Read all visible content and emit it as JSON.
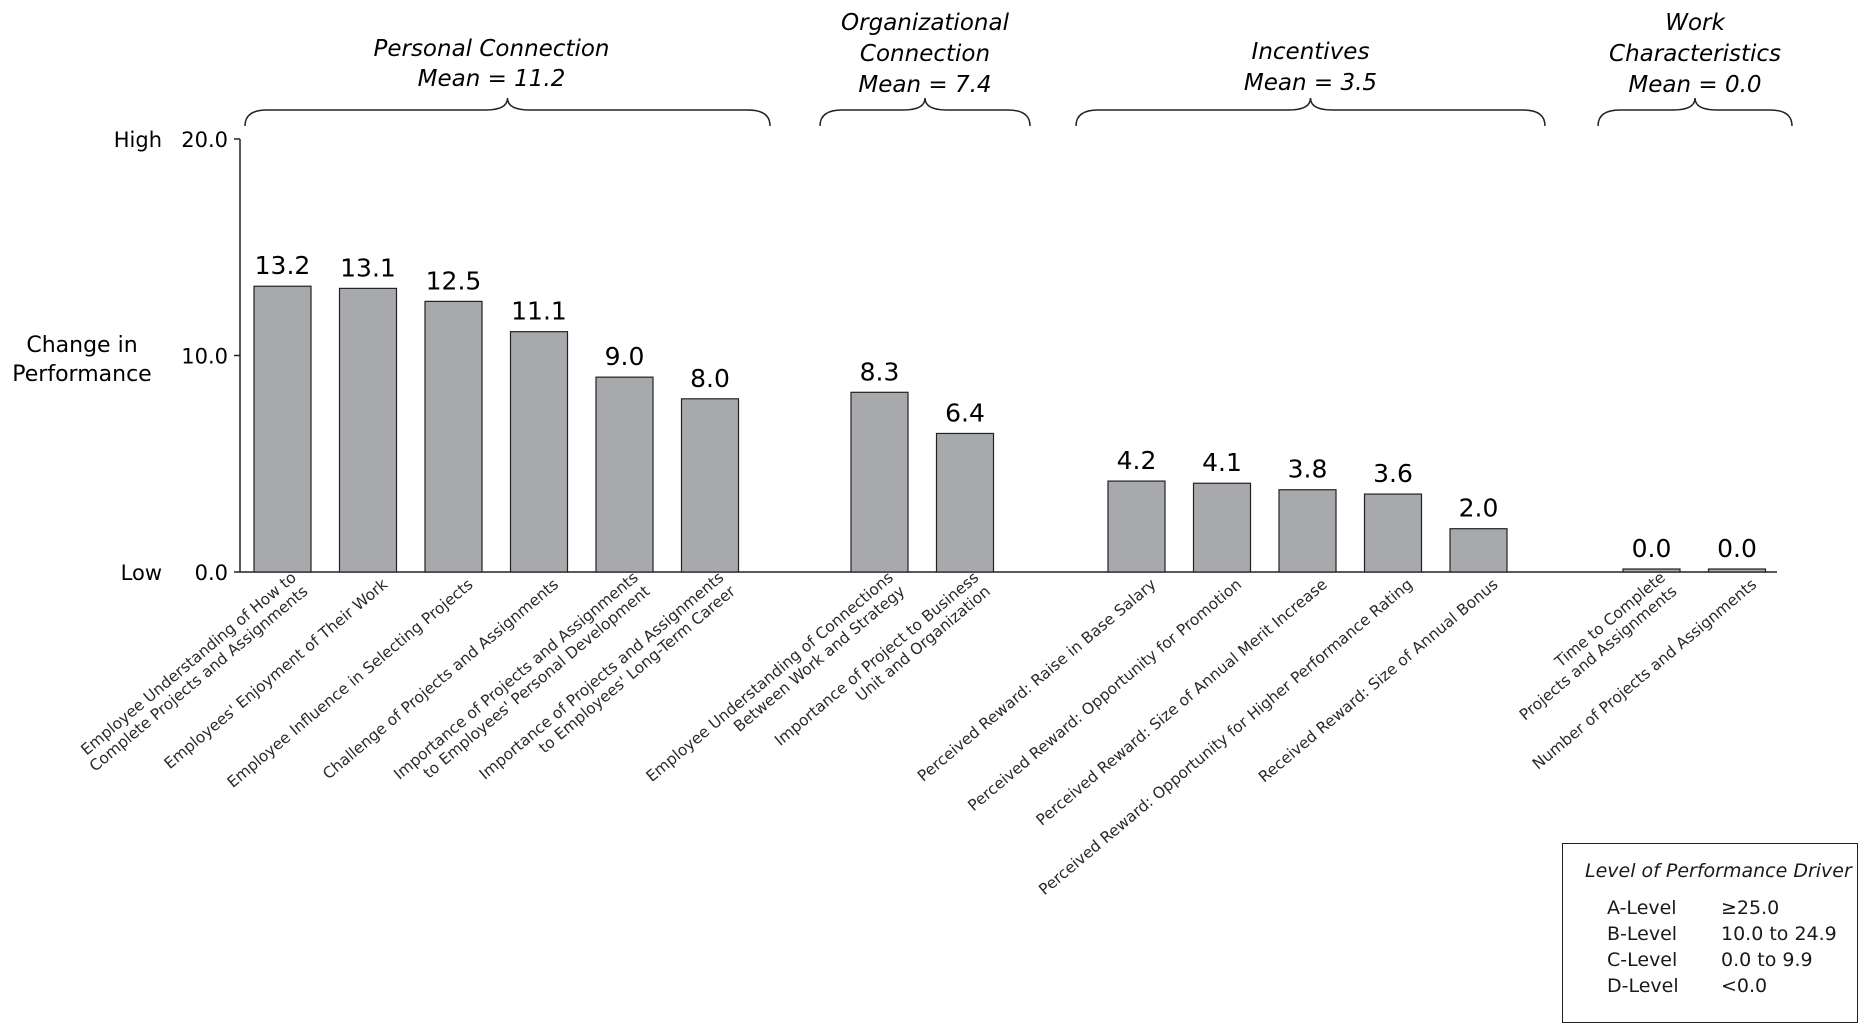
{
  "chart_data": {
    "type": "bar",
    "ylabel": "Change in\nPerformance",
    "ylim": [
      0,
      20
    ],
    "y_ticks": [
      "0.0",
      "10.0",
      "20.0"
    ],
    "y_side_labels": {
      "high": "High",
      "low": "Low"
    },
    "groups": [
      {
        "title_lines": [
          "Personal Connection",
          "Mean = 11.2"
        ],
        "bars": [
          {
            "label": "Employee Understanding of How to\nComplete Projects and Assignments",
            "value": 13.2,
            "value_label": "13.2"
          },
          {
            "label": "Employees' Enjoyment of Their Work",
            "value": 13.1,
            "value_label": "13.1"
          },
          {
            "label": "Employee Influence in Selecting Projects",
            "value": 12.5,
            "value_label": "12.5"
          },
          {
            "label": "Challenge of Projects and Assignments",
            "value": 11.1,
            "value_label": "11.1"
          },
          {
            "label": "Importance of Projects and Assignments\nto Employees' Personal Development",
            "value": 9.0,
            "value_label": "9.0"
          },
          {
            "label": "Importance of Projects and Assignments\nto Employees' Long-Term Career",
            "value": 8.0,
            "value_label": "8.0"
          }
        ]
      },
      {
        "title_lines": [
          "Organizational",
          "Connection",
          "Mean = 7.4"
        ],
        "bars": [
          {
            "label": "Employee Understanding of Connections\nBetween Work and Strategy",
            "value": 8.3,
            "value_label": "8.3"
          },
          {
            "label": "Importance of Project to Business\nUnit and Organization",
            "value": 6.4,
            "value_label": "6.4"
          }
        ]
      },
      {
        "title_lines": [
          "Incentives",
          "Mean = 3.5"
        ],
        "bars": [
          {
            "label": "Perceived Reward: Raise in Base Salary",
            "value": 4.2,
            "value_label": "4.2"
          },
          {
            "label": "Perceived Reward: Opportunity for Promotion",
            "value": 4.1,
            "value_label": "4.1"
          },
          {
            "label": "Perceived Reward: Size of Annual Merit Increase",
            "value": 3.8,
            "value_label": "3.8"
          },
          {
            "label": "Perceived Reward: Opportunity for Higher Performance Rating",
            "value": 3.6,
            "value_label": "3.6"
          },
          {
            "label": "Received Reward: Size of Annual Bonus",
            "value": 2.0,
            "value_label": "2.0"
          }
        ]
      },
      {
        "title_lines": [
          "Work",
          "Characteristics",
          "Mean = 0.0"
        ],
        "bars": [
          {
            "label": "Time to Complete\nProjects and Assignments",
            "value": 0.0,
            "value_label": "0.0"
          },
          {
            "label": "Number of Projects and Assignments",
            "value": 0.0,
            "value_label": "0.0"
          }
        ]
      }
    ],
    "bar_color": "#a7a9ac",
    "bar_stroke": "#222222"
  },
  "legend": {
    "title": "Level of Performance Driver",
    "rows": [
      {
        "level": "A-Level",
        "range": "≥25.0"
      },
      {
        "level": "B-Level",
        "range": "10.0 to 24.9"
      },
      {
        "level": "C-Level",
        "range": "0.0 to 9.9"
      },
      {
        "level": "D-Level",
        "range": "<0.0"
      }
    ]
  }
}
